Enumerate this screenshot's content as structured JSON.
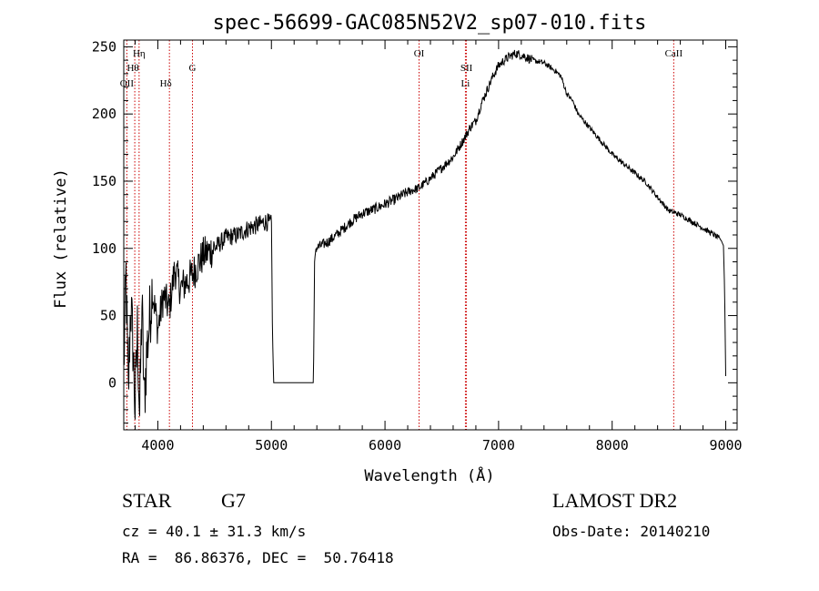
{
  "chart_data": {
    "type": "line",
    "title": "spec-56699-GAC085N52V2_sp07-010.fits",
    "xlabel": "Wavelength (Å)",
    "ylabel": "Flux (relative)",
    "xlim": [
      3700,
      9100
    ],
    "ylim": [
      -35,
      255
    ],
    "xticks": [
      "4000",
      "5000",
      "6000",
      "7000",
      "8000",
      "9000"
    ],
    "yticks": [
      "0",
      "50",
      "100",
      "150",
      "200",
      "250"
    ],
    "grid": false,
    "series": [
      {
        "x": [
          3700,
          3720,
          3740,
          3760,
          3780,
          3800,
          3820,
          3840,
          3860,
          3880,
          3900,
          3950,
          4000,
          4050,
          4100,
          4150,
          4200,
          4300,
          4400,
          4500,
          4600,
          4700,
          4800,
          4900,
          4950,
          5000,
          5010,
          5020,
          5100,
          5200,
          5300,
          5370,
          5380,
          5390,
          5500,
          5600,
          5700,
          5800,
          5900,
          6000,
          6100,
          6200,
          6300,
          6400,
          6500,
          6600,
          6650,
          6700,
          6750,
          6800,
          6850,
          6900,
          6950,
          7000,
          7050,
          7100,
          7150,
          7200,
          7250,
          7300,
          7400,
          7500,
          7550,
          7600,
          7650,
          7700,
          7800,
          7900,
          8000,
          8100,
          8200,
          8300,
          8400,
          8500,
          8600,
          8700,
          8800,
          8900,
          8960,
          8980,
          8990,
          9000
        ],
        "y": [
          10,
          80,
          -10,
          60,
          30,
          -20,
          40,
          -25,
          60,
          -15,
          20,
          70,
          40,
          65,
          55,
          85,
          70,
          80,
          95,
          100,
          108,
          110,
          115,
          118,
          120,
          118,
          30,
          0,
          0,
          0,
          0,
          0,
          90,
          100,
          105,
          112,
          120,
          126,
          129,
          133,
          137,
          142,
          145,
          152,
          160,
          168,
          175,
          182,
          190,
          195,
          208,
          218,
          228,
          236,
          240,
          243,
          245,
          244,
          242,
          240,
          238,
          232,
          228,
          215,
          210,
          200,
          190,
          180,
          170,
          163,
          156,
          149,
          138,
          128,
          125,
          120,
          115,
          110,
          106,
          102,
          70,
          5
        ]
      }
    ],
    "line_markers": [
      {
        "label": "OII",
        "x": 3727
      },
      {
        "label": "Hθ",
        "x": 3797
      },
      {
        "label": "Hη",
        "x": 3835
      },
      {
        "label": "Hδ",
        "x": 4102
      },
      {
        "label": "G",
        "x": 4305
      },
      {
        "label": "OI",
        "x": 6300
      },
      {
        "label": "Li",
        "x": 6708
      },
      {
        "label": "SII",
        "x": 6717
      },
      {
        "label": "CaII",
        "x": 8542
      }
    ],
    "marker_color": "#cc0000"
  },
  "info": {
    "obj_class": "STAR",
    "subclass": "G7",
    "survey": "LAMOST DR2",
    "cz": "cz = 40.1 ± 31.3 km/s",
    "obs_date": "Obs-Date: 20140210",
    "coords": "RA =  86.86376, DEC =  50.76418"
  }
}
